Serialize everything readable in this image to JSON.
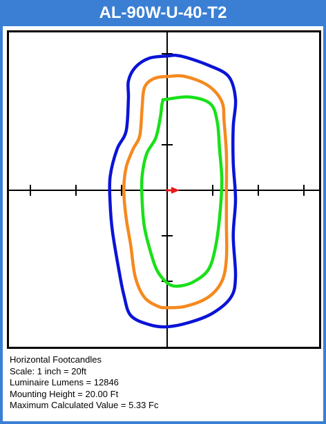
{
  "title": "AL-90W-U-40-T2",
  "info": {
    "line1": "Horizontal Footcandles",
    "line2": "Scale: 1 inch = 20ft",
    "line3": "Luminaire Lumens = 12846",
    "line4": "Mounting Height = 20.00 Ft",
    "line5": "Maximum Calculated Value = 5.33 Fc"
  },
  "colors": {
    "title_bg": "#3a7fd4",
    "contour_outer": "#0a14d6",
    "contour_middle": "#f5891e",
    "contour_inner": "#19e019",
    "arrow": "#e8191b"
  },
  "chart_data": {
    "type": "line",
    "title": "",
    "xlabel": "",
    "ylabel": "",
    "xlim": [
      -3.5,
      3.5
    ],
    "ylim": [
      -3.5,
      3.5
    ],
    "grid": false,
    "legend": "none",
    "axis_ticks": [
      -3,
      -2,
      -1,
      1,
      2,
      3
    ],
    "series": [
      {
        "color": "#0a14d6",
        "points": [
          [
            0.0,
            2.95
          ],
          [
            -0.4,
            2.9
          ],
          [
            -0.7,
            2.7
          ],
          [
            -0.85,
            2.4
          ],
          [
            -0.85,
            2.0
          ],
          [
            -0.9,
            1.3
          ],
          [
            -1.1,
            0.9
          ],
          [
            -1.25,
            0.3
          ],
          [
            -1.25,
            -0.3
          ],
          [
            -1.2,
            -0.9
          ],
          [
            -1.05,
            -1.8
          ],
          [
            -0.95,
            -2.3
          ],
          [
            -0.8,
            -2.75
          ],
          [
            -0.4,
            -2.95
          ],
          [
            0.0,
            -3.0
          ],
          [
            0.5,
            -2.9
          ],
          [
            1.0,
            -2.7
          ],
          [
            1.4,
            -2.35
          ],
          [
            1.5,
            -1.9
          ],
          [
            1.45,
            -1.0
          ],
          [
            1.5,
            -0.2
          ],
          [
            1.45,
            0.6
          ],
          [
            1.45,
            1.4
          ],
          [
            1.5,
            2.0
          ],
          [
            1.35,
            2.5
          ],
          [
            0.9,
            2.75
          ],
          [
            0.3,
            2.95
          ],
          [
            0.0,
            2.95
          ]
        ]
      },
      {
        "color": "#f5891e",
        "points": [
          [
            0.0,
            2.5
          ],
          [
            -0.3,
            2.45
          ],
          [
            -0.5,
            2.25
          ],
          [
            -0.55,
            1.8
          ],
          [
            -0.6,
            1.2
          ],
          [
            -0.75,
            0.9
          ],
          [
            -0.9,
            0.5
          ],
          [
            -0.95,
            0.0
          ],
          [
            -0.9,
            -0.6
          ],
          [
            -0.8,
            -1.2
          ],
          [
            -0.7,
            -1.9
          ],
          [
            -0.5,
            -2.35
          ],
          [
            -0.2,
            -2.55
          ],
          [
            0.0,
            -2.58
          ],
          [
            0.4,
            -2.55
          ],
          [
            0.9,
            -2.35
          ],
          [
            1.2,
            -2.0
          ],
          [
            1.3,
            -1.5
          ],
          [
            1.3,
            -0.7
          ],
          [
            1.3,
            0.0
          ],
          [
            1.3,
            0.8
          ],
          [
            1.25,
            1.5
          ],
          [
            1.2,
            1.95
          ],
          [
            0.9,
            2.3
          ],
          [
            0.4,
            2.5
          ],
          [
            0.0,
            2.5
          ]
        ]
      },
      {
        "color": "#19e019",
        "points": [
          [
            0.0,
            2.0
          ],
          [
            -0.1,
            1.95
          ],
          [
            -0.15,
            1.6
          ],
          [
            -0.25,
            1.15
          ],
          [
            -0.45,
            0.8
          ],
          [
            -0.55,
            0.3
          ],
          [
            -0.55,
            -0.2
          ],
          [
            -0.5,
            -0.8
          ],
          [
            -0.35,
            -1.4
          ],
          [
            -0.2,
            -1.8
          ],
          [
            0.05,
            -2.07
          ],
          [
            0.3,
            -2.1
          ],
          [
            0.6,
            -2.0
          ],
          [
            0.9,
            -1.75
          ],
          [
            1.05,
            -1.3
          ],
          [
            1.15,
            -0.6
          ],
          [
            1.2,
            0.2
          ],
          [
            1.15,
            0.9
          ],
          [
            1.1,
            1.5
          ],
          [
            0.95,
            1.9
          ],
          [
            0.5,
            2.05
          ],
          [
            0.0,
            2.0
          ]
        ]
      }
    ]
  }
}
